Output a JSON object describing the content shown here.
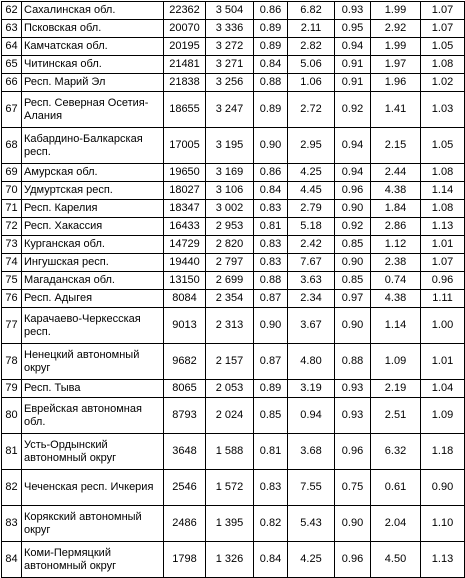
{
  "rows": [
    {
      "num": "62",
      "region": "Сахалинская обл.",
      "v1": "22362",
      "v2": "3 504",
      "v3": "0.86",
      "v4": "6.82",
      "v5": "0.93",
      "v6": "1.99",
      "v7": "1.07"
    },
    {
      "num": "63",
      "region": "Псковская обл.",
      "v1": "20070",
      "v2": "3 336",
      "v3": "0.89",
      "v4": "2.11",
      "v5": "0.95",
      "v6": "2.92",
      "v7": "1.07"
    },
    {
      "num": "64",
      "region": "Камчатская обл.",
      "v1": "20195",
      "v2": "3 272",
      "v3": "0.89",
      "v4": "2.82",
      "v5": "0.94",
      "v6": "1.99",
      "v7": "1.05"
    },
    {
      "num": "65",
      "region": "Читинская обл.",
      "v1": "21481",
      "v2": "3 271",
      "v3": "0.84",
      "v4": "5.06",
      "v5": "0.91",
      "v6": "1.97",
      "v7": "1.08"
    },
    {
      "num": "66",
      "region": "Респ. Марий Эл",
      "v1": "21838",
      "v2": "3 256",
      "v3": "0.88",
      "v4": "1.06",
      "v5": "0.91",
      "v6": "1.96",
      "v7": "1.02"
    },
    {
      "num": "67",
      "region": "Респ. Северная Осетия-Алания",
      "v1": "18655",
      "v2": "3 247",
      "v3": "0.89",
      "v4": "2.72",
      "v5": "0.92",
      "v6": "1.41",
      "v7": "1.03"
    },
    {
      "num": "68",
      "region": "Кабардино-Балкарская респ.",
      "v1": "17005",
      "v2": "3 195",
      "v3": "0.90",
      "v4": "2.95",
      "v5": "0.94",
      "v6": "2.15",
      "v7": "1.05"
    },
    {
      "num": "69",
      "region": "Амурская обл.",
      "v1": "19650",
      "v2": "3 169",
      "v3": "0.86",
      "v4": "4.25",
      "v5": "0.94",
      "v6": "2.44",
      "v7": "1.08"
    },
    {
      "num": "70",
      "region": "Удмуртская респ.",
      "v1": "18027",
      "v2": "3 106",
      "v3": "0.84",
      "v4": "4.45",
      "v5": "0.96",
      "v6": "4.38",
      "v7": "1.14"
    },
    {
      "num": "71",
      "region": "Респ. Карелия",
      "v1": "18347",
      "v2": "3 002",
      "v3": "0.83",
      "v4": "2.79",
      "v5": "0.90",
      "v6": "1.84",
      "v7": "1.08"
    },
    {
      "num": "72",
      "region": "Респ. Хакассия",
      "v1": "16433",
      "v2": "2 953",
      "v3": "0.81",
      "v4": "5.18",
      "v5": "0.92",
      "v6": "2.86",
      "v7": "1.13"
    },
    {
      "num": "73",
      "region": "Курганская обл.",
      "v1": "14729",
      "v2": "2 820",
      "v3": "0.83",
      "v4": "2.42",
      "v5": "0.85",
      "v6": "1.12",
      "v7": "1.01"
    },
    {
      "num": "74",
      "region": "Ингушская респ.",
      "v1": "19440",
      "v2": "2 797",
      "v3": "0.83",
      "v4": "7.67",
      "v5": "0.90",
      "v6": "2.38",
      "v7": "1.07"
    },
    {
      "num": "75",
      "region": "Магаданская обл.",
      "v1": "13150",
      "v2": "2 699",
      "v3": "0.88",
      "v4": "3.63",
      "v5": "0.85",
      "v6": "0.74",
      "v7": "0.96"
    },
    {
      "num": "76",
      "region": "Респ. Адыгея",
      "v1": "8084",
      "v2": "2 354",
      "v3": "0.87",
      "v4": "2.34",
      "v5": "0.97",
      "v6": "4.38",
      "v7": "1.11"
    },
    {
      "num": "77",
      "region": "Карачаево-Черкесская респ.",
      "v1": "9013",
      "v2": "2 313",
      "v3": "0.90",
      "v4": "3.67",
      "v5": "0.90",
      "v6": "1.14",
      "v7": "1.00"
    },
    {
      "num": "78",
      "region": "Ненецкий автономный округ",
      "v1": "9682",
      "v2": "2 157",
      "v3": "0.87",
      "v4": "4.80",
      "v5": "0.88",
      "v6": "1.09",
      "v7": "1.01"
    },
    {
      "num": "79",
      "region": "Респ. Тыва",
      "v1": "8065",
      "v2": "2 053",
      "v3": "0.89",
      "v4": "3.19",
      "v5": "0.93",
      "v6": "2.19",
      "v7": "1.04"
    },
    {
      "num": "80",
      "region": "Еврейская автономная обл.",
      "v1": "8793",
      "v2": "2 024",
      "v3": "0.85",
      "v4": "0.94",
      "v5": "0.93",
      "v6": "2.51",
      "v7": "1.09"
    },
    {
      "num": "81",
      "region": "Усть-Ордынский автономный округ",
      "v1": "3648",
      "v2": "1 588",
      "v3": "0.81",
      "v4": "3.68",
      "v5": "0.96",
      "v6": "6.32",
      "v7": "1.18"
    },
    {
      "num": "82",
      "region": "Чеченская респ. Ичкерия",
      "v1": "2546",
      "v2": "1 572",
      "v3": "0.83",
      "v4": "7.55",
      "v5": "0.75",
      "v6": "0.61",
      "v7": "0.90"
    },
    {
      "num": "83",
      "region": "Корякский автономный округ",
      "v1": "2486",
      "v2": "1 395",
      "v3": "0.82",
      "v4": "5.43",
      "v5": "0.90",
      "v6": "2.04",
      "v7": "1.10"
    },
    {
      "num": "84",
      "region": "Коми-Пермяцкий автономный округ",
      "v1": "1798",
      "v2": "1 326",
      "v3": "0.84",
      "v4": "4.25",
      "v5": "0.96",
      "v6": "4.50",
      "v7": "1.13"
    }
  ]
}
